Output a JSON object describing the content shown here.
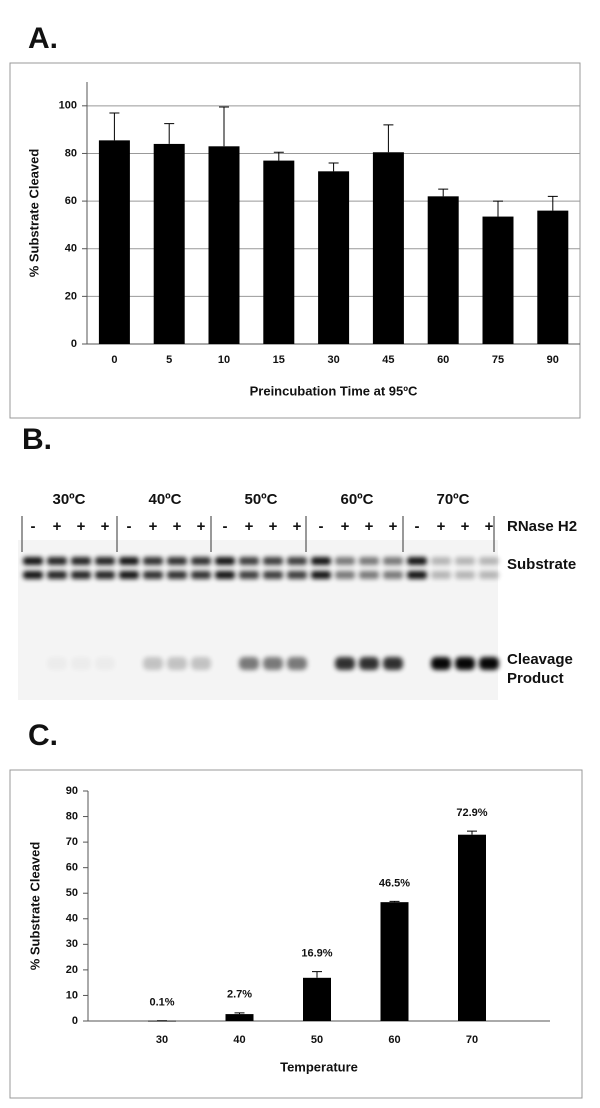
{
  "chart_data": [
    {
      "type": "bar",
      "label": "A.",
      "ylabel": "% Substrate Cleaved",
      "xlabel": "Preincubation Time at 95ºC",
      "categories": [
        "0",
        "5",
        "10",
        "15",
        "30",
        "45",
        "60",
        "75",
        "90"
      ],
      "values": [
        85.5,
        84,
        83,
        77,
        72.5,
        80.5,
        62,
        53.5,
        56
      ],
      "errors": [
        11.5,
        8.5,
        16.5,
        3.5,
        3.5,
        11.5,
        3,
        6.5,
        6
      ],
      "color": "#000000",
      "ylim": [
        0,
        110
      ],
      "yticks": [
        0,
        20,
        40,
        60,
        80,
        100
      ],
      "grid": true
    },
    {
      "type": "bar",
      "label": "C.",
      "ylabel": "% Substrate Cleaved",
      "xlabel": "Temperature",
      "categories": [
        "30",
        "40",
        "50",
        "60",
        "70"
      ],
      "values": [
        0.1,
        2.7,
        16.9,
        46.5,
        72.9
      ],
      "value_labels": [
        "0.1%",
        "2.7%",
        "16.9%",
        "46.5%",
        "72.9%"
      ],
      "errors": [
        0,
        0.5,
        2.4,
        0.3,
        1.4
      ],
      "color": "#000000",
      "ylim": [
        0,
        90
      ],
      "yticks": [
        0,
        10,
        20,
        30,
        40,
        50,
        60,
        70,
        80,
        90
      ],
      "grid": false
    }
  ],
  "gel": {
    "label": "B.",
    "temperatures": [
      "30ºC",
      "40ºC",
      "50ºC",
      "60ºC",
      "70ºC"
    ],
    "lanes": [
      "-",
      "+",
      "+",
      "+",
      "-",
      "+",
      "+",
      "+",
      "-",
      "+",
      "+",
      "+",
      "-",
      "+",
      "+",
      "+",
      "-",
      "+",
      "+",
      "+"
    ],
    "enzyme": "RNase H2",
    "substrate": "Substrate",
    "product": [
      "Cleavage",
      "Product"
    ]
  }
}
